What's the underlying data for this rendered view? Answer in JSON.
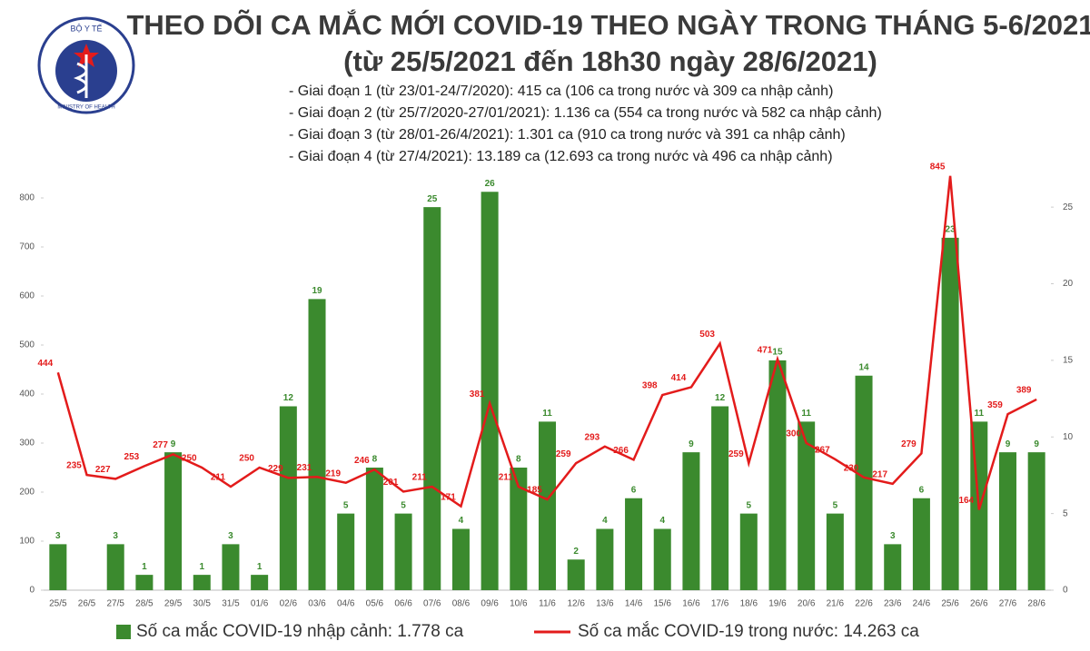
{
  "logo_text": [
    "BỘ Y TẾ",
    "MINISTRY OF HEALTH"
  ],
  "chart_data": {
    "type": "bar-line",
    "title": "THEO DÕI CA MẮC MỚI COVID-19 THEO NGÀY TRONG THÁNG 5-6/2021",
    "subtitle": "(từ 25/5/2021 đến 18h30 ngày 28/6/2021)",
    "notes": [
      "- Giai đoạn 1 (từ 23/01-24/7/2020): 415 ca (106 ca trong nước và 309 ca nhập cảnh)",
      "- Giai đoạn 2 (từ 25/7/2020-27/01/2021): 1.136 ca (554 ca trong nước và 582 ca nhập cảnh)",
      "- Giai đoạn 3 (từ 28/01-26/4/2021): 1.301 ca (910 ca trong nước và 391 ca nhập cảnh)",
      "- Giai đoạn 4 (từ 27/4/2021): 13.189 ca (12.693 ca trong nước và 496 ca nhập cảnh)"
    ],
    "categories": [
      "25/5",
      "26/5",
      "27/5",
      "28/5",
      "29/5",
      "30/5",
      "31/5",
      "01/6",
      "02/6",
      "03/6",
      "04/6",
      "05/6",
      "06/6",
      "07/6",
      "08/6",
      "09/6",
      "10/6",
      "11/6",
      "12/6",
      "13/6",
      "14/6",
      "15/6",
      "16/6",
      "17/6",
      "18/6",
      "19/6",
      "20/6",
      "21/6",
      "22/6",
      "23/6",
      "24/6",
      "25/6",
      "26/6",
      "27/6",
      "28/6"
    ],
    "series": [
      {
        "name": "Số ca mắc COVID-19 nhập cảnh: 1.778 ca",
        "color": "#3b8a2e",
        "axis": "y2",
        "values": [
          3,
          null,
          3,
          1,
          9,
          1,
          3,
          1,
          12,
          19,
          5,
          8,
          5,
          25,
          4,
          26,
          8,
          11,
          2,
          4,
          6,
          4,
          9,
          12,
          5,
          15,
          11,
          5,
          14,
          3,
          6,
          23,
          11,
          9,
          9
        ]
      },
      {
        "name": "Số ca mắc COVID-19 trong nước: 14.263 ca",
        "color": "#e31b1b",
        "values": [
          444,
          235,
          227,
          253,
          277,
          250,
          211,
          250,
          229,
          231,
          219,
          246,
          201,
          211,
          171,
          381,
          211,
          185,
          259,
          293,
          266,
          398,
          414,
          503,
          259,
          471,
          300,
          267,
          230,
          217,
          279,
          845,
          164,
          359,
          389
        ]
      }
    ],
    "ylim": [
      0,
      850
    ],
    "yticks": [
      0,
      100,
      200,
      300,
      400,
      500,
      600,
      700,
      800
    ],
    "y2lim": [
      0,
      27.2
    ],
    "y2ticks": [
      0,
      5,
      10,
      15,
      20,
      25
    ]
  }
}
